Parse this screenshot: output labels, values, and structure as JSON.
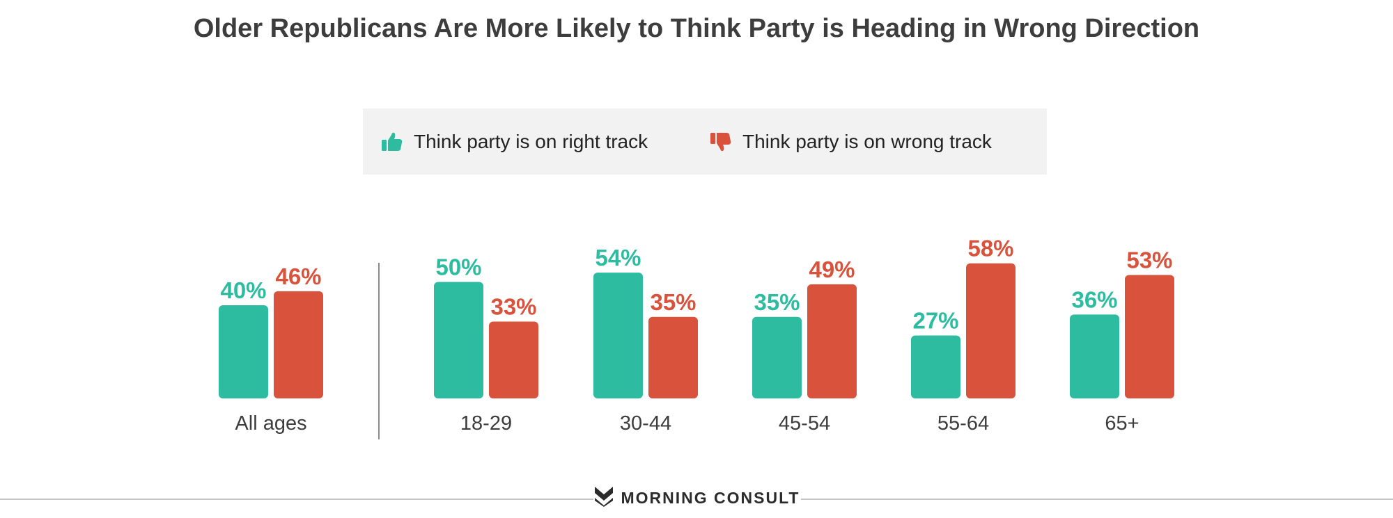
{
  "chart_data": {
    "type": "bar",
    "title": "Older Republicans Are More Likely to Think Party is Heading in Wrong Direction",
    "categories": [
      "All ages",
      "18-29",
      "30-44",
      "45-54",
      "55-64",
      "65+"
    ],
    "series": [
      {
        "name": "Think party is on right track",
        "color": "#2dbca0",
        "icon": "thumbs-up-icon",
        "values": [
          40,
          50,
          54,
          35,
          27,
          36
        ]
      },
      {
        "name": "Think party is on wrong track",
        "color": "#d9533c",
        "icon": "thumbs-down-icon",
        "values": [
          46,
          33,
          35,
          49,
          58,
          53
        ]
      }
    ],
    "value_suffix": "%",
    "legend": "top-center",
    "grid": false,
    "ylim": [
      0,
      60
    ]
  },
  "footer": {
    "brand": "MORNING CONSULT",
    "icon": "morning-consult-logo-icon"
  }
}
